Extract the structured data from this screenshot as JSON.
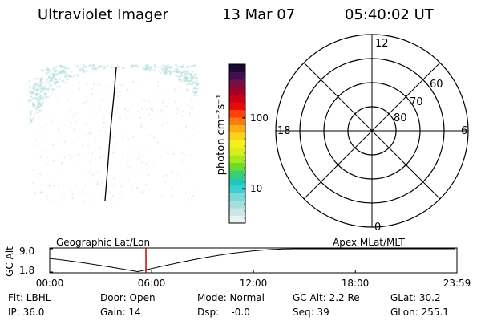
{
  "header": {
    "instrument": "Ultraviolet Imager",
    "date": "13 Mar 07",
    "time": "05:40:02 UT"
  },
  "colorbar": {
    "unit_label": "photon cm⁻²s⁻¹",
    "ticks": [
      {
        "label": "100",
        "value": 100
      },
      {
        "label": "10",
        "value": 10
      }
    ],
    "colors": [
      "#e8f2f2",
      "#cde6e6",
      "#a6dede",
      "#7ad9d9",
      "#3dcfcf",
      "#22c8b4",
      "#3ccf6a",
      "#6fda2a",
      "#a8e81a",
      "#dcec1a",
      "#f6f01a",
      "#ffd21a",
      "#ffac14",
      "#ff7a0e",
      "#ff400a",
      "#e80a0a",
      "#c80014",
      "#a0002a",
      "#701044",
      "#401052",
      "#1a0a30"
    ]
  },
  "polar_plot": {
    "mlt_labels": [
      {
        "label": "12",
        "pos": "top"
      },
      {
        "label": "18",
        "pos": "left"
      },
      {
        "label": "6",
        "pos": "right"
      },
      {
        "label": "0",
        "pos": "bottom"
      }
    ],
    "lat_labels": [
      "60",
      "70",
      "80"
    ]
  },
  "alt_plot": {
    "ylabel": "GC Alt",
    "left_label": "Geographic Lat/Lon",
    "right_label": "Apex MLat/MLT",
    "y_ticks": [
      "9.0",
      "1.8"
    ],
    "y_values": [
      9.0,
      1.8
    ],
    "x_ticks": [
      "00:00",
      "06:00",
      "12:00",
      "18:00",
      "23:59"
    ],
    "current_time_hours": 5.667
  },
  "footer": {
    "row1": {
      "flt": "Flt: LBHL",
      "door": "Door: Open",
      "mode": "Mode: Normal",
      "gc_alt": "GC Alt: 2.2 Re",
      "glat": "GLat:  30.2"
    },
    "row2": {
      "ip": "IP: 36.0",
      "gain": "Gain: 14",
      "dsp": "Dsp:    -0.0",
      "seq": "Seq: 39",
      "glon": "GLon: 255.1"
    }
  },
  "colors": {
    "current_time_marker": "#cc0000",
    "aurora_speckle": "#b8dede"
  }
}
